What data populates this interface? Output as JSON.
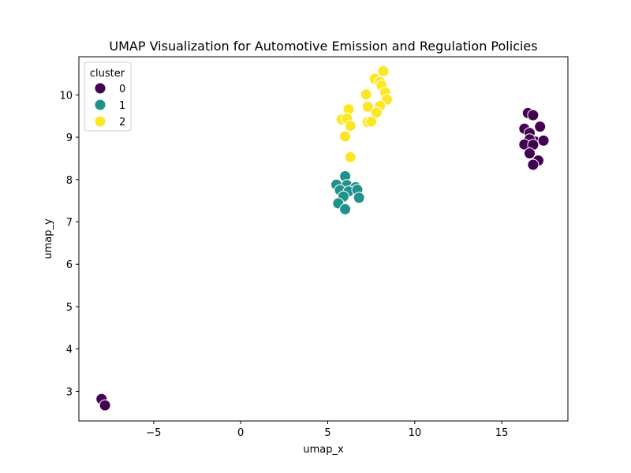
{
  "chart_data": {
    "type": "scatter",
    "title": "UMAP Visualization for Automotive Emission and Regulation Policies",
    "xlabel": "umap_x",
    "ylabel": "umap_y",
    "xlim": [
      -9.3,
      18.8
    ],
    "ylim": [
      2.3,
      10.9
    ],
    "xticks": [
      -5,
      0,
      5,
      10,
      15
    ],
    "yticks": [
      3,
      4,
      5,
      6,
      7,
      8,
      9,
      10
    ],
    "xtick_labels": [
      "−5",
      "0",
      "5",
      "10",
      "15"
    ],
    "ytick_labels": [
      "3",
      "4",
      "5",
      "6",
      "7",
      "8",
      "9",
      "10"
    ],
    "grid": false,
    "legend": {
      "title": "cluster",
      "position": "top-left"
    },
    "series": [
      {
        "name": "0",
        "color": "#440154",
        "points": [
          [
            -8.0,
            2.82
          ],
          [
            -7.8,
            2.67
          ],
          [
            16.5,
            9.57
          ],
          [
            16.8,
            9.52
          ],
          [
            16.3,
            9.2
          ],
          [
            17.2,
            9.25
          ],
          [
            16.6,
            9.1
          ],
          [
            16.9,
            8.9
          ],
          [
            16.6,
            8.95
          ],
          [
            17.4,
            8.92
          ],
          [
            16.3,
            8.83
          ],
          [
            16.8,
            8.82
          ],
          [
            16.6,
            8.62
          ],
          [
            17.1,
            8.45
          ],
          [
            16.8,
            8.35
          ]
        ]
      },
      {
        "name": "1",
        "color": "#21918c",
        "points": [
          [
            6.0,
            8.08
          ],
          [
            5.5,
            7.88
          ],
          [
            6.1,
            7.87
          ],
          [
            6.6,
            7.82
          ],
          [
            5.7,
            7.75
          ],
          [
            6.2,
            7.72
          ],
          [
            6.7,
            7.76
          ],
          [
            5.9,
            7.6
          ],
          [
            6.8,
            7.57
          ],
          [
            5.6,
            7.44
          ],
          [
            6.0,
            7.3
          ]
        ]
      },
      {
        "name": "2",
        "color": "#fde725",
        "points": [
          [
            8.2,
            10.56
          ],
          [
            7.7,
            10.38
          ],
          [
            8.0,
            10.3
          ],
          [
            8.1,
            10.22
          ],
          [
            8.3,
            10.06
          ],
          [
            7.2,
            10.01
          ],
          [
            8.4,
            9.89
          ],
          [
            8.0,
            9.74
          ],
          [
            7.3,
            9.72
          ],
          [
            6.2,
            9.66
          ],
          [
            7.8,
            9.58
          ],
          [
            5.8,
            9.42
          ],
          [
            6.1,
            9.44
          ],
          [
            7.3,
            9.36
          ],
          [
            7.5,
            9.37
          ],
          [
            6.3,
            9.27
          ],
          [
            6.0,
            9.02
          ],
          [
            6.3,
            8.53
          ]
        ]
      }
    ]
  }
}
